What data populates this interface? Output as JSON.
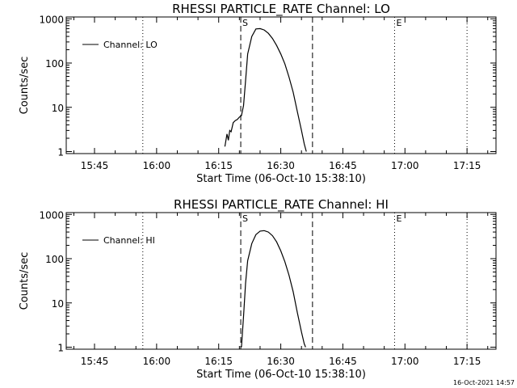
{
  "footer": {
    "timestamp": "16-Oct-2021 14:57"
  },
  "chart_data": [
    {
      "type": "line",
      "title": "RHESSI PARTICLE_RATE Channel: LO",
      "xlabel": "Start Time (06-Oct-10 15:38:10)",
      "ylabel": "Counts/sec",
      "y_scale": "log",
      "ylim": [
        0.9,
        1100
      ],
      "xlim": [
        "15:38:10",
        "17:22:00"
      ],
      "xticks": [
        "15:45",
        "16:00",
        "16:15",
        "16:30",
        "16:45",
        "17:00",
        "17:15"
      ],
      "yticks": [
        "1",
        "10",
        "100",
        "1000"
      ],
      "legend": {
        "position": "top-left",
        "entries": [
          "Channel: LO"
        ]
      },
      "vlines": [
        {
          "x": "15:56:40",
          "style": "dotted",
          "label": ""
        },
        {
          "x": "16:20:20",
          "style": "dashed",
          "label": "S"
        },
        {
          "x": "16:37:40",
          "style": "dashed",
          "label": ""
        },
        {
          "x": "16:57:30",
          "style": "dotted",
          "label": "E"
        },
        {
          "x": "17:15:00",
          "style": "dotted",
          "label": ""
        }
      ],
      "series": [
        {
          "name": "Channel: LO",
          "x": [
            "16:16:30",
            "16:17:00",
            "16:17:20",
            "16:17:40",
            "16:18:00",
            "16:18:30",
            "16:19:00",
            "16:19:30",
            "16:20:00",
            "16:20:30",
            "16:21:00",
            "16:21:30",
            "16:22:00",
            "16:23:00",
            "16:24:00",
            "16:25:00",
            "16:26:00",
            "16:27:00",
            "16:28:00",
            "16:29:00",
            "16:30:00",
            "16:31:00",
            "16:32:00",
            "16:33:00",
            "16:34:00",
            "16:35:00",
            "16:35:40",
            "16:36:10"
          ],
          "y": [
            1.3,
            2.5,
            1.8,
            3.0,
            2.8,
            4.5,
            5.0,
            5.3,
            6.0,
            6.5,
            11,
            40,
            160,
            400,
            590,
            600,
            560,
            470,
            360,
            250,
            160,
            95,
            48,
            22,
            8,
            3,
            1.5,
            1
          ]
        }
      ]
    },
    {
      "type": "line",
      "title": "RHESSI PARTICLE_RATE Channel: HI",
      "xlabel": "Start Time (06-Oct-10 15:38:10)",
      "ylabel": "Counts/sec",
      "y_scale": "log",
      "ylim": [
        0.9,
        1100
      ],
      "xlim": [
        "15:38:10",
        "17:22:00"
      ],
      "xticks": [
        "15:45",
        "16:00",
        "16:15",
        "16:30",
        "16:45",
        "17:00",
        "17:15"
      ],
      "yticks": [
        "1",
        "10",
        "100",
        "1000"
      ],
      "legend": {
        "position": "top-left",
        "entries": [
          "Channel: HI"
        ]
      },
      "vlines": [
        {
          "x": "15:56:40",
          "style": "dotted",
          "label": ""
        },
        {
          "x": "16:20:20",
          "style": "dashed",
          "label": "S"
        },
        {
          "x": "16:37:40",
          "style": "dashed",
          "label": ""
        },
        {
          "x": "16:57:30",
          "style": "dotted",
          "label": "E"
        },
        {
          "x": "17:15:00",
          "style": "dotted",
          "label": ""
        }
      ],
      "series": [
        {
          "name": "Channel: HI",
          "x": [
            "16:20:30",
            "16:21:00",
            "16:21:30",
            "16:22:00",
            "16:23:00",
            "16:24:00",
            "16:25:00",
            "16:26:00",
            "16:27:00",
            "16:28:00",
            "16:29:00",
            "16:30:00",
            "16:31:00",
            "16:32:00",
            "16:33:00",
            "16:34:00",
            "16:35:00",
            "16:35:40",
            "16:36:00"
          ],
          "y": [
            1,
            5,
            28,
            90,
            220,
            350,
            420,
            430,
            400,
            330,
            240,
            150,
            85,
            42,
            18,
            6,
            2.2,
            1.2,
            1
          ]
        }
      ]
    }
  ]
}
